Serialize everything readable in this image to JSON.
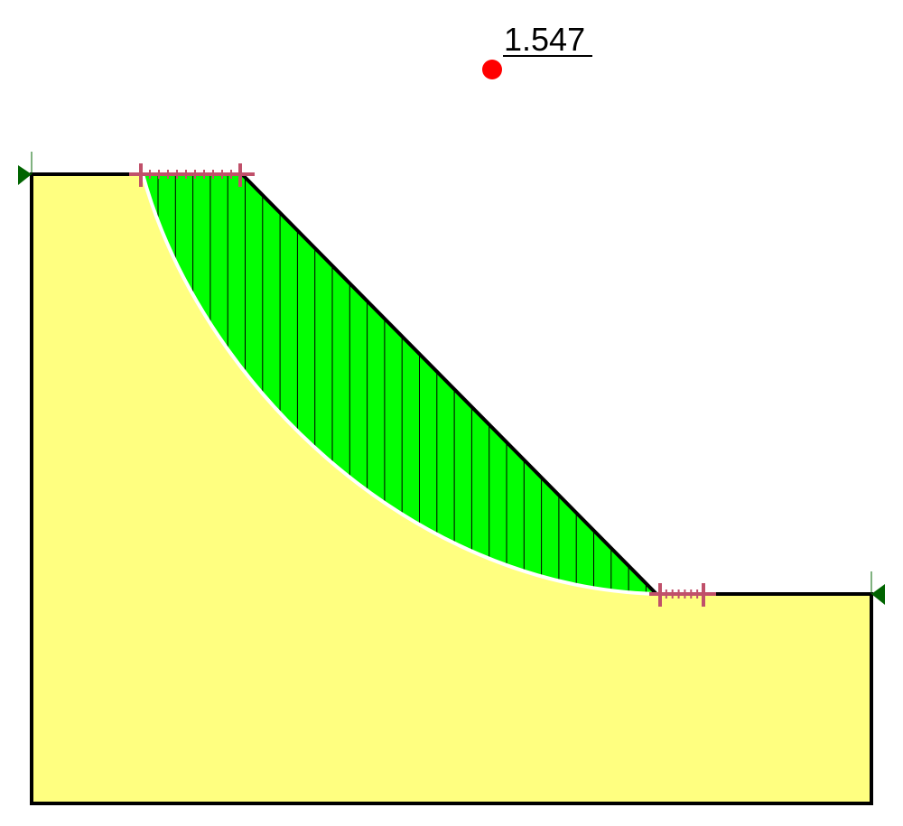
{
  "factor_of_safety": {
    "label": "1.547"
  }
}
